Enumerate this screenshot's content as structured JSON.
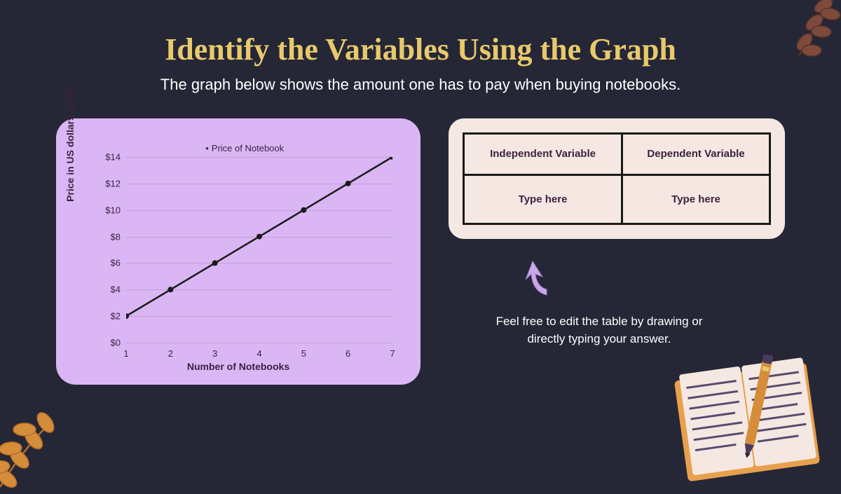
{
  "title": "Identify the Variables Using the Graph",
  "subtitle": "The graph below shows the amount one has to pay when buying notebooks.",
  "chart": {
    "type": "line",
    "legend": "Price of Notebook",
    "y_label": "Price in US dollars (US$)",
    "x_label": "Number of Notebooks",
    "x_values": [
      1,
      2,
      3,
      4,
      5,
      6,
      7
    ],
    "y_values": [
      2,
      4,
      6,
      8,
      10,
      12,
      14
    ],
    "y_ticks": [
      "$0",
      "$2",
      "$4",
      "$6",
      "$8",
      "$10",
      "$12",
      "$14"
    ],
    "x_ticks": [
      "1",
      "2",
      "3",
      "4",
      "5",
      "6",
      "7"
    ],
    "ylim": [
      0,
      14
    ],
    "xlim": [
      1,
      7
    ],
    "line_color": "#1a1a1a",
    "marker_color": "#1a1a1a",
    "grid_color": "rgba(61,31,63,0.15)",
    "panel_bg": "#dab6f5",
    "text_color": "#3d1f3f",
    "line_width": 2.5,
    "marker_radius": 4
  },
  "table": {
    "panel_bg": "#f5e8e2",
    "border_color": "#1a1a1a",
    "headers": [
      "Independent Variable",
      "Dependent Variable"
    ],
    "cells": [
      "Type here",
      "Type here"
    ]
  },
  "instruction": "Feel free to edit the table by drawing or directly typing your answer.",
  "colors": {
    "page_bg": "#252736",
    "title": "#e8c96b",
    "subtitle": "#ffffff",
    "leaf_tr": "#7d4a3c",
    "leaf_bl": "#d68d3a",
    "arrow": "#c9a8e8",
    "notebook_cover": "#e8a04d",
    "notebook_page": "#f5e8e2",
    "notebook_lines": "#5a4a6e",
    "pen": "#d68d3a"
  }
}
